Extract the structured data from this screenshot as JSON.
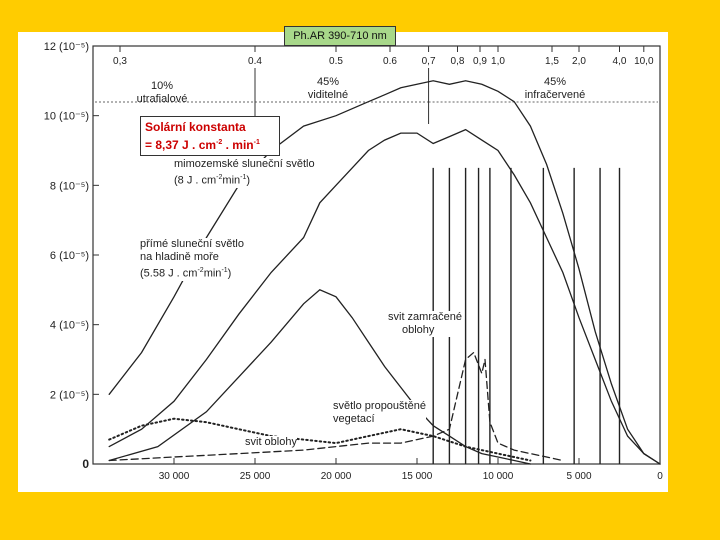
{
  "banner": "Ph.AR 390-710 nm",
  "constant": {
    "line1": "Solární konstanta",
    "line2_prefix": "= 8,37 J . cm",
    "line2_exp1": "-2",
    "line2_mid": " . min",
    "line2_exp2": "-1"
  },
  "bands": [
    {
      "pct": "10%",
      "name": "utrafialové"
    },
    {
      "pct": "45%",
      "name": "viditelné"
    },
    {
      "pct": "45%",
      "name": "infračervené"
    }
  ],
  "annotations": {
    "extraterrestrial": {
      "line1": "mimozemské sluneční světlo",
      "line2_a": "(8 J . cm",
      "line2_e1": "-2",
      "line2_b": "min",
      "line2_e2": "-1",
      "line2_c": ")"
    },
    "direct": {
      "line1": "přímé sluneční světlo",
      "line2": "na hladině moře",
      "line3_a": "(5.58 J . cm",
      "line3_e1": "-2",
      "line3_b": "min",
      "line3_e2": "-1",
      "line3_c": ")"
    },
    "overcast": {
      "line1": "svit zamračené",
      "line2": "oblohy"
    },
    "vegetation": {
      "line1": "světlo propouštěné",
      "line2": "vegetací"
    },
    "sky": "svit oblohy"
  },
  "chart_data": {
    "type": "line",
    "title": "",
    "x_top_ticks": [
      "0,3",
      "0.4",
      "0.5",
      "0.6",
      "0,7",
      "0,8",
      "0,9",
      "1,0",
      "1,5",
      "2,0",
      "4,0",
      "10,0"
    ],
    "x_bottom_ticks": [
      "30 000",
      "25 000",
      "20 000",
      "15 000",
      "10 000",
      "5 000",
      "0"
    ],
    "y_ticks": [
      "0",
      "2 (10⁻⁵)",
      "4 (10⁻⁵)",
      "6 (10⁻⁵)",
      "8 (10⁻⁵)",
      "10 (10⁻⁵)",
      "12 (10⁻⁵)"
    ],
    "ylim": [
      0,
      12
    ],
    "xlim": [
      35000,
      0
    ],
    "series": [
      {
        "name": "mimozemské sluneční světlo",
        "style": "solid",
        "x": [
          34000,
          32000,
          30000,
          28000,
          26000,
          24000,
          22000,
          20000,
          19000,
          18000,
          17000,
          16000,
          15000,
          14000,
          13000,
          12000,
          11000,
          10000,
          9000,
          8000,
          7000,
          6000,
          5000,
          4000,
          3000,
          2000,
          1000,
          0
        ],
        "values": [
          2.0,
          3.2,
          4.8,
          6.5,
          8.0,
          9.0,
          9.7,
          10.0,
          10.2,
          10.4,
          10.6,
          10.8,
          10.9,
          11.0,
          10.9,
          11.0,
          10.9,
          10.7,
          10.4,
          9.7,
          8.6,
          7.2,
          5.6,
          3.8,
          2.3,
          1.0,
          0.3,
          0.0
        ]
      },
      {
        "name": "přímé sluneční světlo na hladině moře",
        "style": "solid",
        "x": [
          34000,
          32000,
          30000,
          28000,
          26000,
          24000,
          22000,
          21000,
          20000,
          19000,
          18000,
          17000,
          16000,
          15000,
          14000,
          13000,
          12000,
          11000,
          10000,
          9000,
          8000,
          7000,
          6000,
          5000,
          4000,
          3000,
          2000,
          1000,
          0
        ],
        "values": [
          0.5,
          1.0,
          1.8,
          3.0,
          4.3,
          5.5,
          6.5,
          7.5,
          8.0,
          8.5,
          9.0,
          9.3,
          9.5,
          9.5,
          9.2,
          9.4,
          9.6,
          9.3,
          9.0,
          8.3,
          7.5,
          6.5,
          5.5,
          4.2,
          3.0,
          1.8,
          0.8,
          0.3,
          0.0
        ]
      },
      {
        "name": "svit zamračené oblohy",
        "style": "solid",
        "x": [
          34000,
          31000,
          28000,
          26000,
          24000,
          22000,
          21000,
          20000,
          19000,
          18000,
          17000,
          16000,
          15000,
          14000,
          13000,
          12000,
          11000,
          10000,
          9000,
          8000
        ],
        "values": [
          0.1,
          0.5,
          1.5,
          2.5,
          3.5,
          4.6,
          5.0,
          4.8,
          4.2,
          3.5,
          2.8,
          2.2,
          1.6,
          1.1,
          0.8,
          0.5,
          0.3,
          0.2,
          0.1,
          0.0
        ]
      },
      {
        "name": "světlo propouštěné vegetací",
        "style": "dashed",
        "x": [
          34000,
          30000,
          26000,
          22000,
          20000,
          18000,
          16000,
          15000,
          14000,
          13000,
          12000,
          11500,
          11000,
          10800,
          10500,
          10000,
          9500,
          9000,
          8000,
          7000,
          6000
        ],
        "values": [
          0.1,
          0.2,
          0.3,
          0.4,
          0.5,
          0.6,
          0.6,
          0.7,
          0.8,
          1.0,
          3.0,
          3.2,
          2.6,
          3.0,
          1.2,
          0.6,
          0.5,
          0.4,
          0.3,
          0.2,
          0.1
        ]
      },
      {
        "name": "svit oblohy",
        "style": "dotted",
        "x": [
          34000,
          32000,
          30000,
          28000,
          26000,
          24000,
          22000,
          20000,
          18000,
          16000,
          14000,
          12000,
          10000,
          8000
        ],
        "values": [
          0.7,
          1.1,
          1.3,
          1.2,
          1.0,
          0.8,
          0.7,
          0.6,
          0.8,
          1.0,
          0.8,
          0.5,
          0.3,
          0.1
        ]
      }
    ]
  }
}
